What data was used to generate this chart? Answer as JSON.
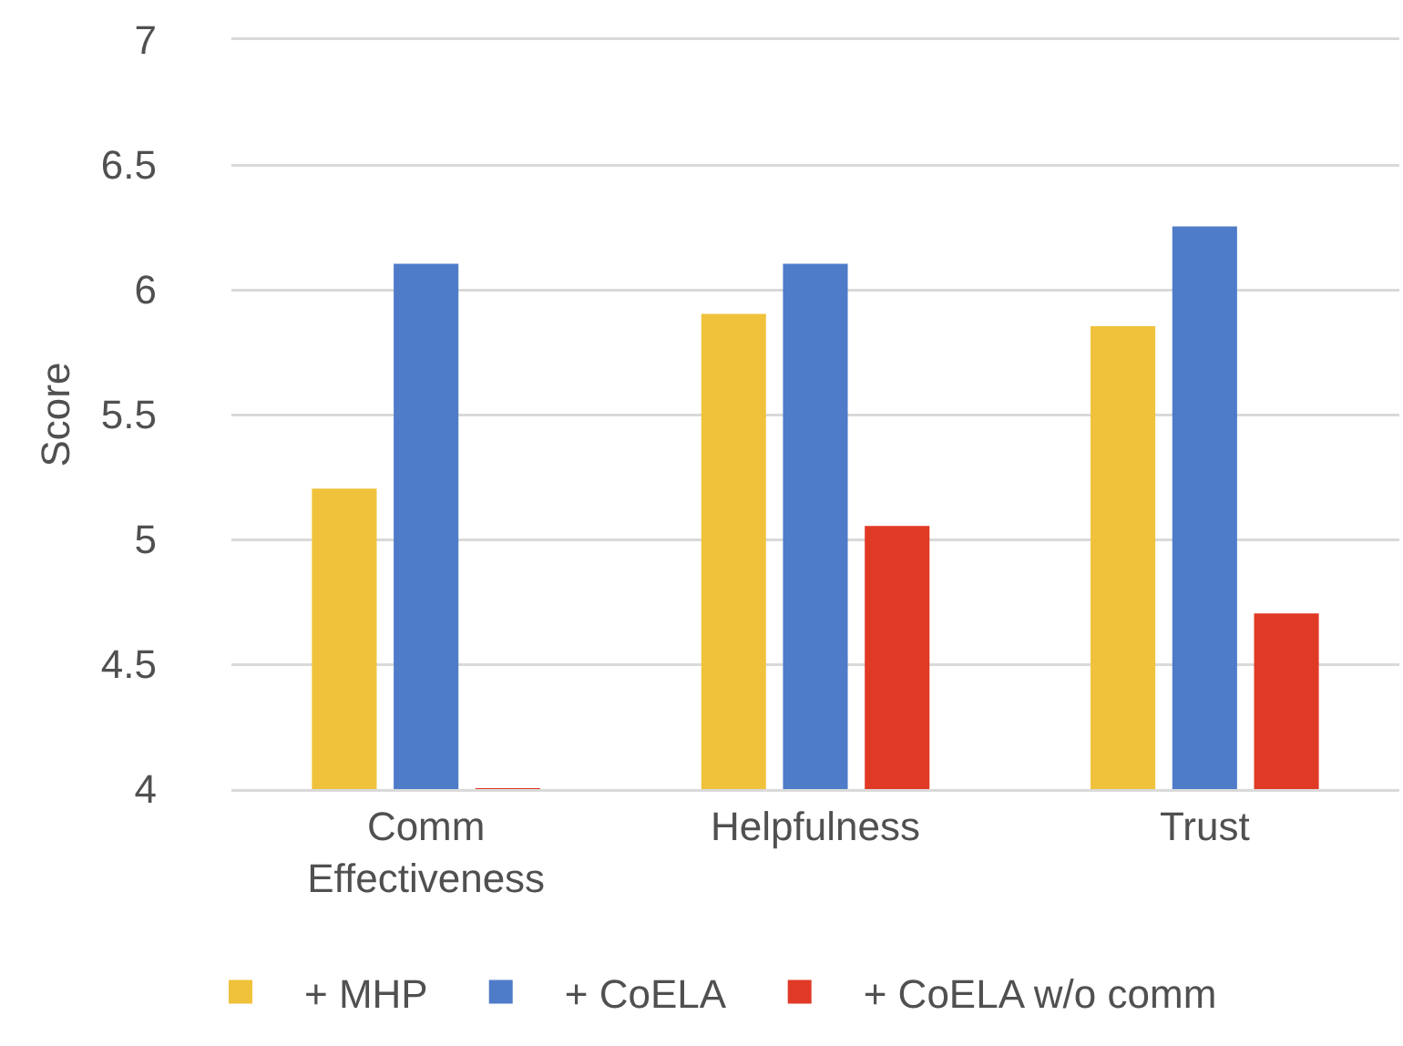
{
  "chart_data": {
    "type": "bar",
    "ylabel": "Score",
    "categories": [
      "Comm Effectiveness",
      "Helpfulness",
      "Trust"
    ],
    "series": [
      {
        "name": "+ MHP",
        "color": "#f0c23c",
        "values": [
          5.2,
          5.9,
          5.85
        ]
      },
      {
        "name": "+ CoELA",
        "color": "#4f7cc9",
        "values": [
          6.1,
          6.1,
          6.25
        ]
      },
      {
        "name": "+ CoELA w/o comm",
        "color": "#e03a26",
        "values": [
          4.0,
          5.05,
          4.7
        ]
      }
    ],
    "ylim": [
      4,
      7
    ],
    "yticks": [
      4,
      4.5,
      5,
      5.5,
      6,
      6.5,
      7
    ],
    "grid": "y",
    "legend": "bottom"
  }
}
